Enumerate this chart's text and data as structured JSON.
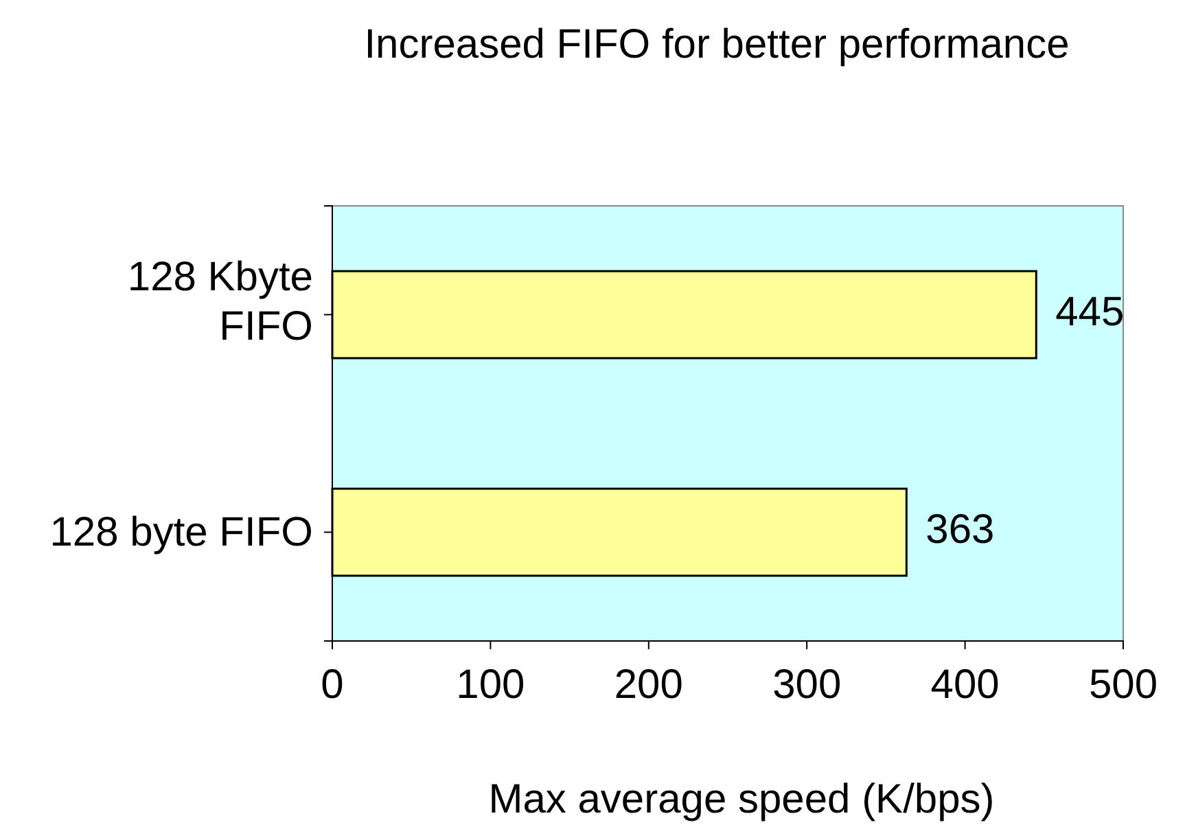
{
  "chart_data": {
    "type": "bar",
    "orientation": "horizontal",
    "title": "Increased FIFO for better performance",
    "xlabel": "Max average speed (K/bps)",
    "categories": [
      "128 Kbyte FIFO",
      "128 byte FIFO"
    ],
    "values": [
      445,
      363
    ],
    "color": "#ffff99",
    "xlim": [
      0,
      500
    ],
    "xticks": [
      0,
      100,
      200,
      300,
      400,
      500
    ],
    "data_labels": true,
    "grid": false
  }
}
